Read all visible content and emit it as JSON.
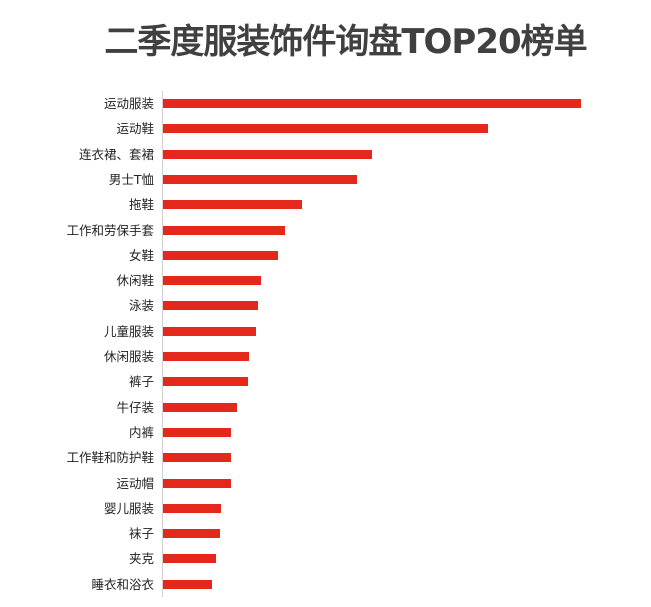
{
  "title": "二季度服装饰件询盘TOP20榜单",
  "colors": {
    "bar": "#e5281c",
    "title": "#404040",
    "axis": "#d0d0d0"
  },
  "chart_data": {
    "type": "bar",
    "orientation": "horizontal",
    "title": "二季度服装饰件询盘TOP20榜单",
    "xlabel": "",
    "ylabel": "",
    "grid": false,
    "legend": null,
    "value_axis_visible": false,
    "note": "No numeric axis shown; values are relative bar lengths (pixels from axis)",
    "categories": [
      "运动服装",
      "运动鞋",
      "连衣裙、套裙",
      "男士T恤",
      "拖鞋",
      "工作和劳保手套",
      "女鞋",
      "休闲鞋",
      "泳装",
      "儿童服装",
      "休闲服装",
      "裤子",
      "牛仔装",
      "内裤",
      "工作鞋和防护鞋",
      "运动帽",
      "婴儿服装",
      "袜子",
      "夹克",
      "睡衣和浴衣"
    ],
    "values": [
      418,
      325,
      209,
      194,
      139,
      122,
      115,
      98,
      95,
      93,
      86,
      85,
      74,
      68,
      68,
      68,
      58,
      57,
      53,
      49
    ],
    "xlim": [
      0,
      430
    ]
  }
}
